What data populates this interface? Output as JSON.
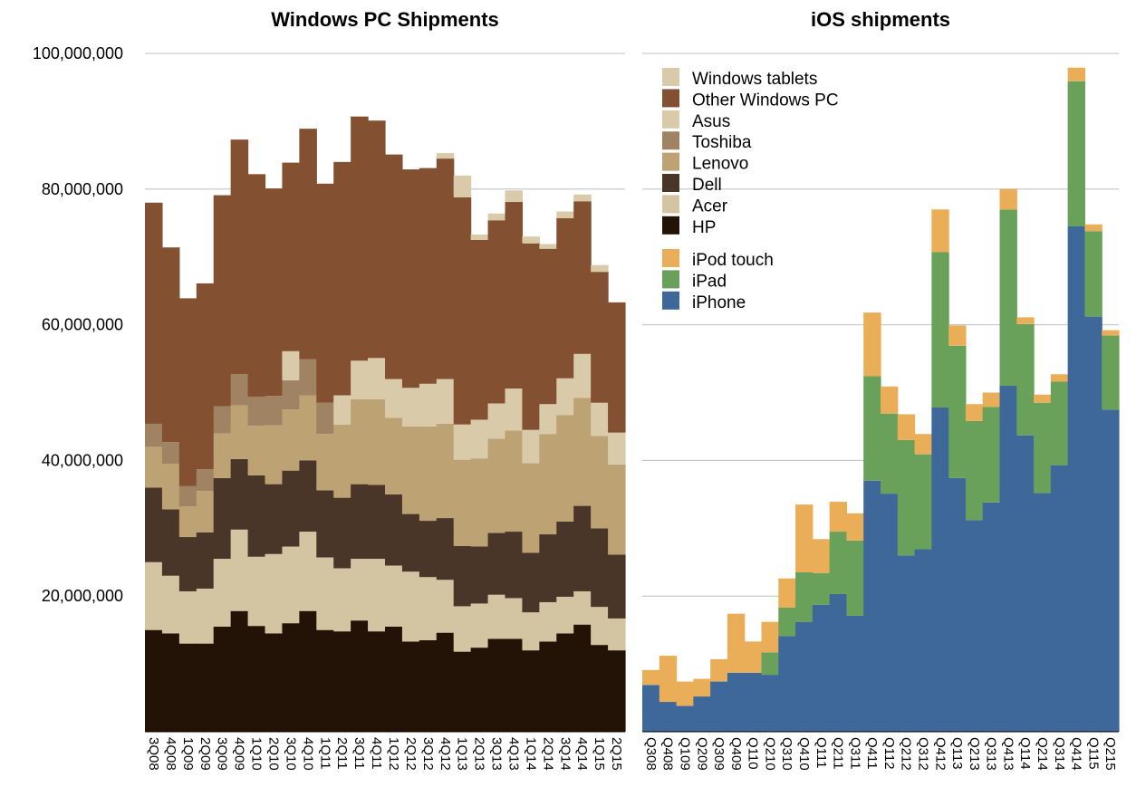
{
  "chart_data": [
    {
      "type": "area",
      "stacked": true,
      "step": true,
      "title": "Windows PC Shipments",
      "xlabel": "",
      "ylabel": "",
      "ylim": [
        0,
        100000000
      ],
      "yticks": [
        20000000,
        40000000,
        60000000,
        80000000,
        100000000
      ],
      "ytick_labels": [
        "20,000,000",
        "40,000,000",
        "60,000,000",
        "80,000,000",
        "100,000,000"
      ],
      "grid": true,
      "categories": [
        "3Q08",
        "4Q08",
        "1Q09",
        "2Q09",
        "3Q09",
        "4Q09",
        "1Q10",
        "2Q10",
        "3Q10",
        "4Q10",
        "1Q11",
        "2Q11",
        "3Q11",
        "4Q11",
        "1Q12",
        "2Q12",
        "3Q12",
        "4Q12",
        "1Q13",
        "2Q13",
        "3Q13",
        "4Q13",
        "1Q14",
        "2Q14",
        "3Q14",
        "4Q14",
        "1Q15",
        "2Q15"
      ],
      "series": [
        {
          "name": "HP",
          "color": "#231307",
          "values": [
            15000000,
            14500000,
            13000000,
            13000000,
            15500000,
            17800000,
            15600000,
            14500000,
            16000000,
            17800000,
            15000000,
            14800000,
            16400000,
            14800000,
            15500000,
            13300000,
            13500000,
            14600000,
            11800000,
            12400000,
            13700000,
            13700000,
            12000000,
            13300000,
            14500000,
            15800000,
            12800000,
            12000000
          ]
        },
        {
          "name": "Acer",
          "color": "#d3c4a2",
          "values": [
            10000000,
            8500000,
            7700000,
            8100000,
            10000000,
            12000000,
            10200000,
            11700000,
            11300000,
            11700000,
            10700000,
            9300000,
            9100000,
            10700000,
            9000000,
            10300000,
            9300000,
            7800000,
            6700000,
            6500000,
            6500000,
            6000000,
            5600000,
            5800000,
            5400000,
            4900000,
            5600000,
            4700000
          ]
        },
        {
          "name": "Dell",
          "color": "#4a3628",
          "values": [
            11000000,
            9800000,
            8000000,
            8300000,
            11900000,
            10400000,
            12000000,
            10300000,
            11200000,
            10500000,
            9900000,
            10400000,
            11000000,
            10900000,
            10500000,
            8500000,
            8300000,
            9100000,
            8900000,
            8400000,
            9100000,
            9800000,
            8800000,
            10000000,
            11100000,
            12600000,
            11600000,
            9400000
          ]
        },
        {
          "name": "Lenovo",
          "color": "#bda274",
          "values": [
            6000000,
            6700000,
            4500000,
            6100000,
            6600000,
            7900000,
            7300000,
            8700000,
            9000000,
            9600000,
            8300000,
            10800000,
            12500000,
            12600000,
            11300000,
            12900000,
            13900000,
            13900000,
            12700000,
            13000000,
            13900000,
            14900000,
            13200000,
            14800000,
            15700000,
            15900000,
            13600000,
            13300000
          ]
        },
        {
          "name": "Toshiba",
          "color": "#a08363",
          "values": [
            3400000,
            3200000,
            3000000,
            3200000,
            4000000,
            4600000,
            4300000,
            4300000,
            4300000,
            5300000,
            4600000,
            0,
            0,
            0,
            0,
            0,
            0,
            0,
            0,
            0,
            0,
            0,
            0,
            0,
            0,
            0,
            0,
            0
          ]
        },
        {
          "name": "Asus",
          "color": "#d9caa9",
          "values": [
            0,
            0,
            0,
            0,
            0,
            0,
            0,
            0,
            4300000,
            0,
            0,
            4300000,
            5700000,
            6100000,
            5700000,
            5700000,
            6300000,
            6600000,
            5200000,
            5700000,
            5200000,
            6200000,
            4900000,
            4400000,
            5400000,
            6500000,
            4900000,
            4700000
          ]
        },
        {
          "name": "Other Windows PC",
          "color": "#835131",
          "values": [
            32600000,
            28700000,
            27700000,
            27400000,
            31100000,
            34600000,
            32800000,
            30600000,
            27800000,
            34000000,
            32300000,
            34400000,
            36000000,
            35000000,
            33100000,
            32200000,
            31800000,
            32500000,
            33500000,
            26500000,
            27000000,
            27500000,
            27500000,
            22900000,
            23600000,
            22500000,
            19300000,
            19200000
          ]
        },
        {
          "name": "Windows tablets",
          "color": "#d9cbaa",
          "values": [
            0,
            0,
            0,
            0,
            0,
            0,
            0,
            0,
            0,
            0,
            0,
            0,
            0,
            0,
            0,
            0,
            0,
            800000,
            3200000,
            800000,
            1000000,
            1700000,
            1000000,
            700000,
            1000000,
            1000000,
            1000000,
            0
          ]
        }
      ]
    },
    {
      "type": "area",
      "stacked": true,
      "step": true,
      "title": "iOS shipments",
      "xlabel": "",
      "ylabel": "",
      "ylim": [
        0,
        100000000
      ],
      "grid": true,
      "categories": [
        "Q308",
        "Q408",
        "Q109",
        "Q209",
        "Q309",
        "Q409",
        "Q110",
        "Q210",
        "Q310",
        "Q410",
        "Q111",
        "Q211",
        "Q311",
        "Q411",
        "Q112",
        "Q212",
        "Q312",
        "Q412",
        "Q113",
        "Q213",
        "Q313",
        "Q413",
        "Q114",
        "Q214",
        "Q314",
        "Q414",
        "Q115",
        "Q215"
      ],
      "series": [
        {
          "name": "iPhone",
          "color": "#3d6899",
          "values": [
            6900000,
            4400000,
            3800000,
            5200000,
            7400000,
            8700000,
            8700000,
            8400000,
            14100000,
            16200000,
            18700000,
            20300000,
            17100000,
            37000000,
            35100000,
            26000000,
            26900000,
            47800000,
            37400000,
            31200000,
            33800000,
            51000000,
            43700000,
            35200000,
            39300000,
            74500000,
            61200000,
            47500000
          ]
        },
        {
          "name": "iPad",
          "color": "#6aa15a",
          "values": [
            0,
            0,
            0,
            0,
            0,
            0,
            0,
            3300000,
            4200000,
            7300000,
            4700000,
            9200000,
            11100000,
            15400000,
            11800000,
            17000000,
            14000000,
            22900000,
            19500000,
            14600000,
            14100000,
            26000000,
            16400000,
            13300000,
            12300000,
            21400000,
            12600000,
            10900000
          ]
        },
        {
          "name": "iPod touch",
          "color": "#eaae58",
          "values": [
            2200000,
            6800000,
            3600000,
            2600000,
            3300000,
            8700000,
            4600000,
            4500000,
            4300000,
            10000000,
            5000000,
            4400000,
            4000000,
            9400000,
            4000000,
            3800000,
            3000000,
            6300000,
            3000000,
            2500000,
            2100000,
            3000000,
            1000000,
            1200000,
            1100000,
            2000000,
            1000000,
            800000
          ]
        }
      ]
    }
  ],
  "legend": {
    "placement": "top-left of iOS chart",
    "windows_items": [
      {
        "label": "Windows tablets",
        "color": "#d9cbaa"
      },
      {
        "label": "Other Windows PC",
        "color": "#835131"
      },
      {
        "label": "Asus",
        "color": "#d9caa9"
      },
      {
        "label": "Toshiba",
        "color": "#a08363"
      },
      {
        "label": "Lenovo",
        "color": "#bda274"
      },
      {
        "label": "Dell",
        "color": "#4a3628"
      },
      {
        "label": "Acer",
        "color": "#d3c4a2"
      },
      {
        "label": "HP",
        "color": "#231307"
      }
    ],
    "ios_items": [
      {
        "label": "iPod touch",
        "color": "#eaae58"
      },
      {
        "label": "iPad",
        "color": "#6aa15a"
      },
      {
        "label": "iPhone",
        "color": "#3d6899"
      }
    ]
  }
}
